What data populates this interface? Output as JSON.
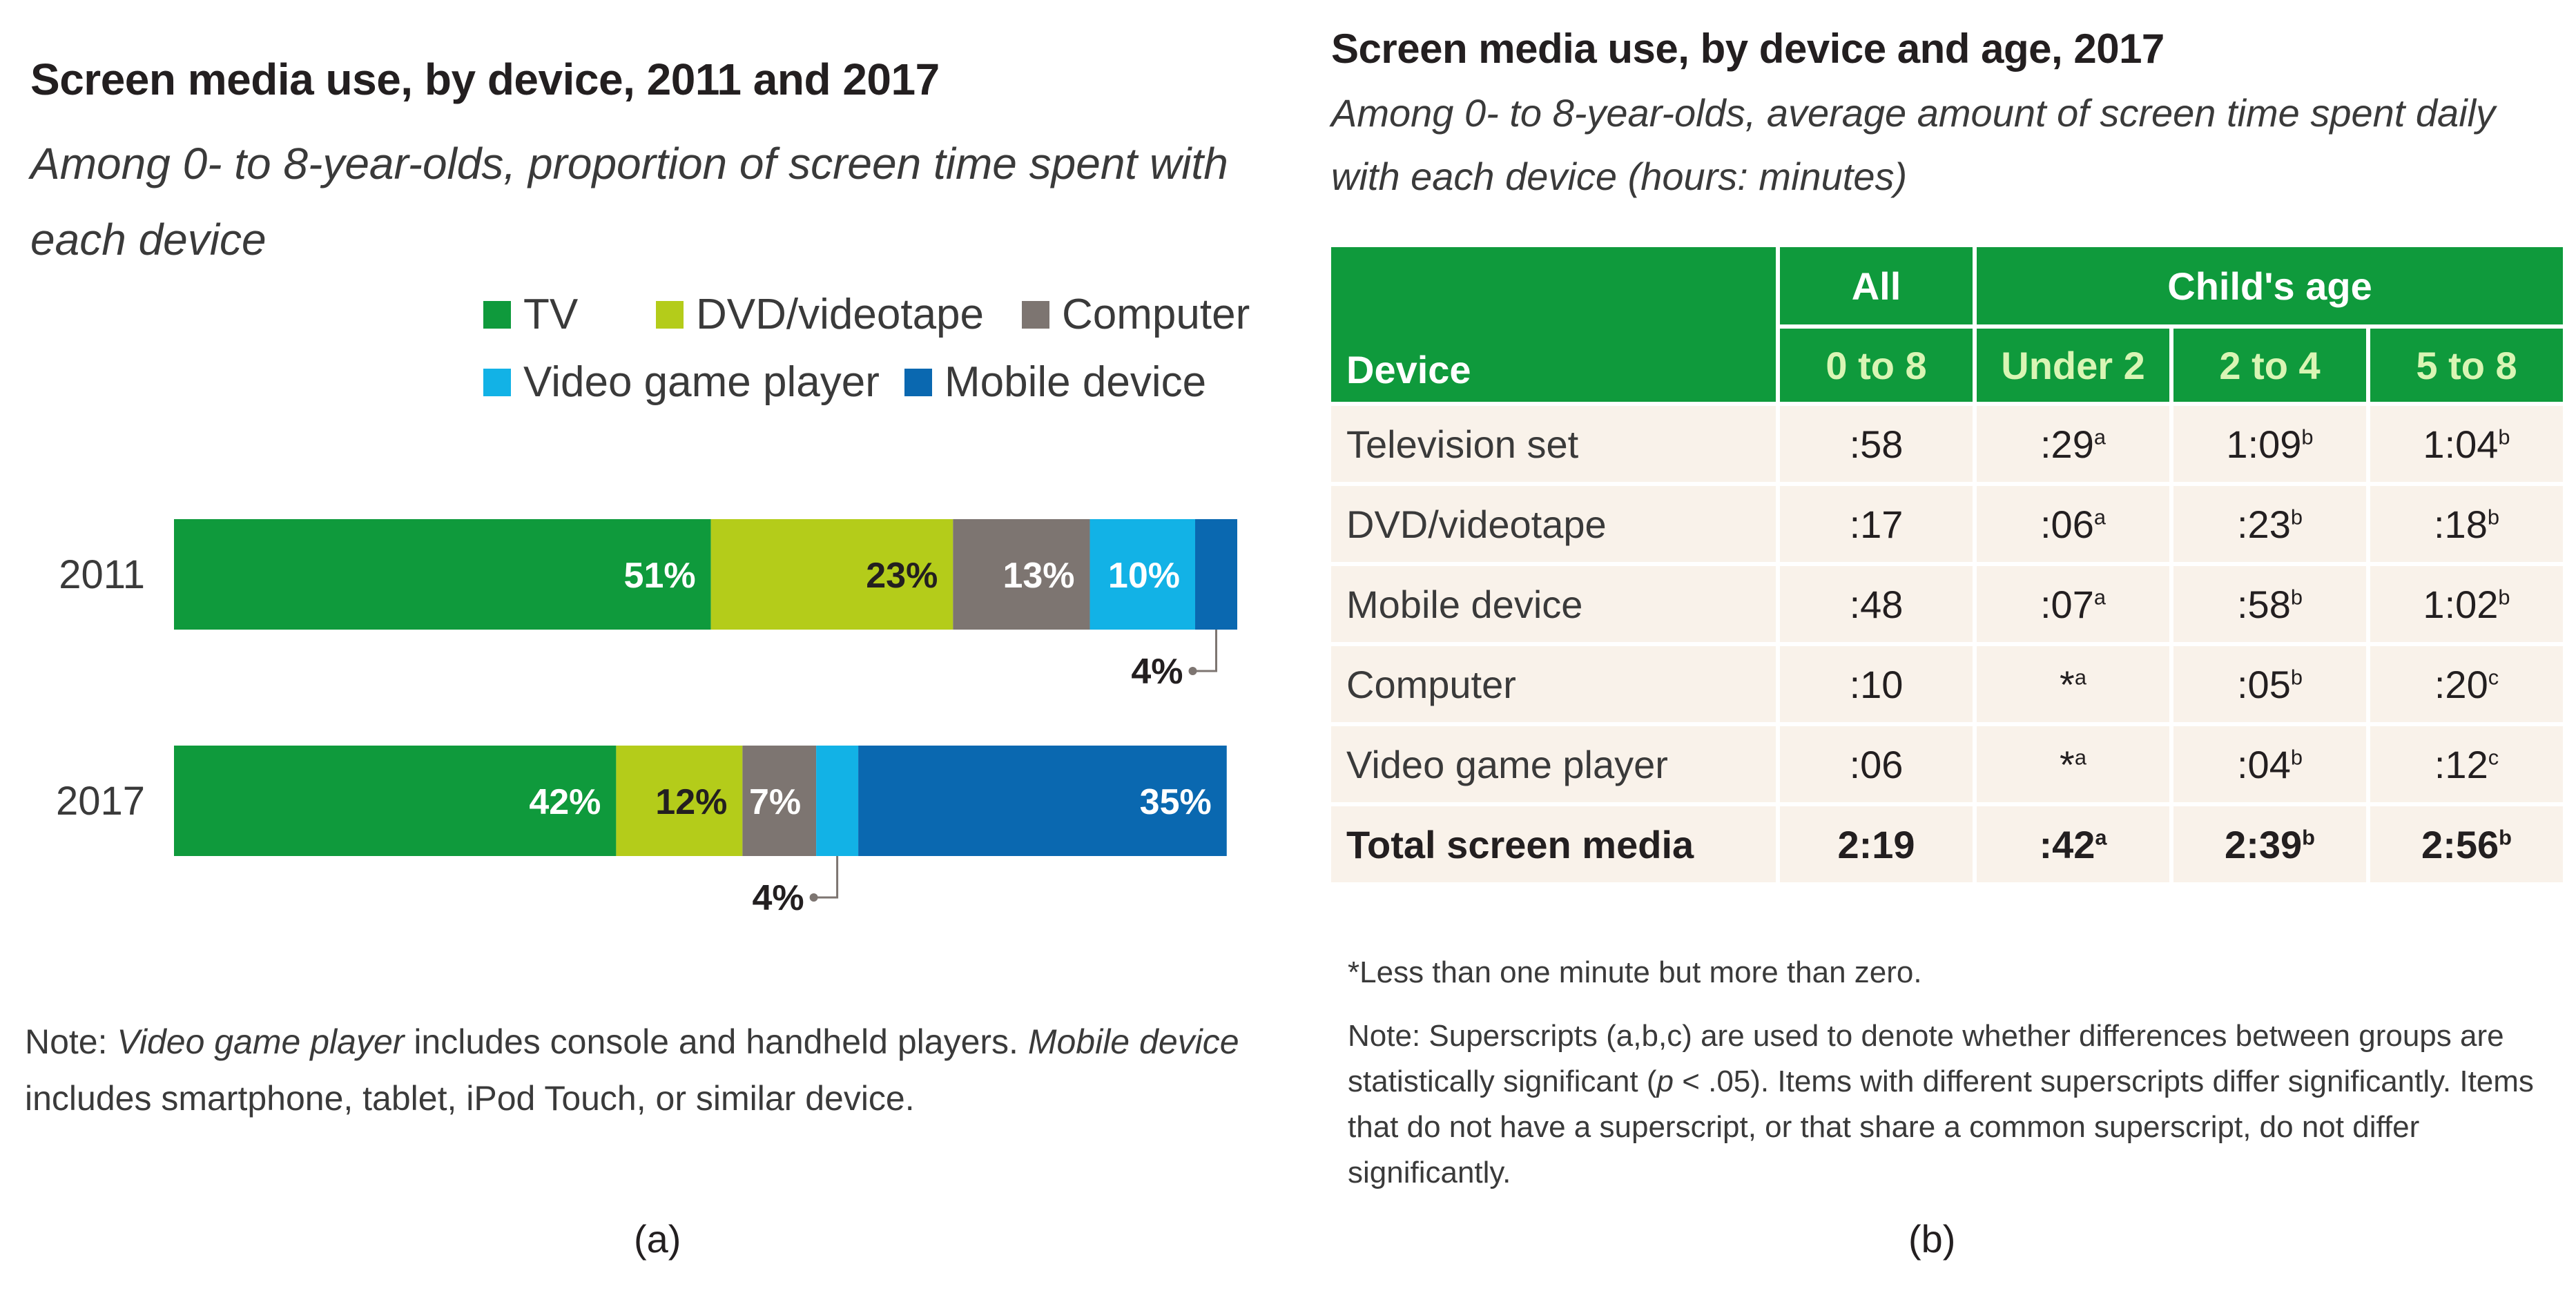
{
  "panel_a": {
    "title": "Screen media use, by device, 2011 and 2017",
    "subtitle": "Among 0- to 8-year-olds, proportion of screen time spent with each device",
    "note_prefix": "Note: ",
    "note_term1": "Video game player",
    "note_mid": " includes console and handheld players. ",
    "note_term2": "Mobile device",
    "note_end": " includes smartphone, tablet, iPod Touch, or similar device.",
    "caption": "(a)"
  },
  "chart_data": {
    "type": "bar",
    "orientation": "horizontal",
    "stacked": true,
    "title": "Screen media use, by device, 2011 and 2017",
    "subtitle": "Among 0- to 8-year-olds, proportion of screen time spent with each device",
    "categories": [
      "2011",
      "2017"
    ],
    "series": [
      {
        "name": "TV",
        "color": "#0f9a3c",
        "values": [
          51,
          42
        ],
        "labels": [
          "51%",
          "42%"
        ]
      },
      {
        "name": "DVD/videotape",
        "color": "#b4cc1a",
        "values": [
          23,
          12
        ],
        "labels": [
          "23%",
          "12%"
        ]
      },
      {
        "name": "Computer",
        "color": "#7d7571",
        "values": [
          13,
          7
        ],
        "labels": [
          "13%",
          "7%"
        ]
      },
      {
        "name": "Video game player",
        "color": "#12b2e6",
        "values": [
          10,
          4
        ],
        "labels": [
          "10%",
          "4%"
        ]
      },
      {
        "name": "Mobile device",
        "color": "#0a68b0",
        "values": [
          4,
          35
        ],
        "labels": [
          "4%",
          "35%"
        ]
      }
    ],
    "unit": "%",
    "xlim": [
      0,
      101
    ],
    "legend_position": "top-right",
    "grid": false
  },
  "panel_b": {
    "title": "Screen media use, by device and age, 2017",
    "subtitle": "Among 0- to 8-year-olds, average amount of screen time spent daily with each device (hours: minutes)",
    "header": {
      "all": "All",
      "childs_age": "Child's age",
      "device": "Device",
      "columns": [
        "0 to 8",
        "Under 2",
        "2 to 4",
        "5 to 8"
      ]
    },
    "rows": [
      {
        "device": "Television set",
        "cells": [
          {
            "v": ":58",
            "s": ""
          },
          {
            "v": ":29",
            "s": "a"
          },
          {
            "v": "1:09",
            "s": "b"
          },
          {
            "v": "1:04",
            "s": "b"
          }
        ]
      },
      {
        "device": "DVD/videotape",
        "cells": [
          {
            "v": ":17",
            "s": ""
          },
          {
            "v": ":06",
            "s": "a"
          },
          {
            "v": ":23",
            "s": "b"
          },
          {
            "v": ":18",
            "s": "b"
          }
        ]
      },
      {
        "device": "Mobile device",
        "cells": [
          {
            "v": ":48",
            "s": ""
          },
          {
            "v": ":07",
            "s": "a"
          },
          {
            "v": ":58",
            "s": "b"
          },
          {
            "v": "1:02",
            "s": "b"
          }
        ]
      },
      {
        "device": "Computer",
        "cells": [
          {
            "v": ":10",
            "s": ""
          },
          {
            "v": "*",
            "s": "a"
          },
          {
            "v": ":05",
            "s": "b"
          },
          {
            "v": ":20",
            "s": "c"
          }
        ]
      },
      {
        "device": "Video game player",
        "cells": [
          {
            "v": ":06",
            "s": ""
          },
          {
            "v": "*",
            "s": "a"
          },
          {
            "v": ":04",
            "s": "b"
          },
          {
            "v": ":12",
            "s": "c"
          }
        ]
      }
    ],
    "total": {
      "device": "Total screen media",
      "cells": [
        {
          "v": "2:19",
          "s": ""
        },
        {
          "v": ":42",
          "s": "a"
        },
        {
          "v": "2:39",
          "s": "b"
        },
        {
          "v": "2:56",
          "s": "b"
        }
      ]
    },
    "footnote": "*Less than one minute but more than zero.",
    "note_prefix": "Note: Superscripts (a,b,c) are used to denote whether differences between groups are statistically significant (",
    "note_p": "p",
    "note_suffix": " < .05). Items with different superscripts differ significantly. Items that do not have a superscript, or that share a common superscript, do not differ significantly.",
    "caption": "(b)"
  }
}
